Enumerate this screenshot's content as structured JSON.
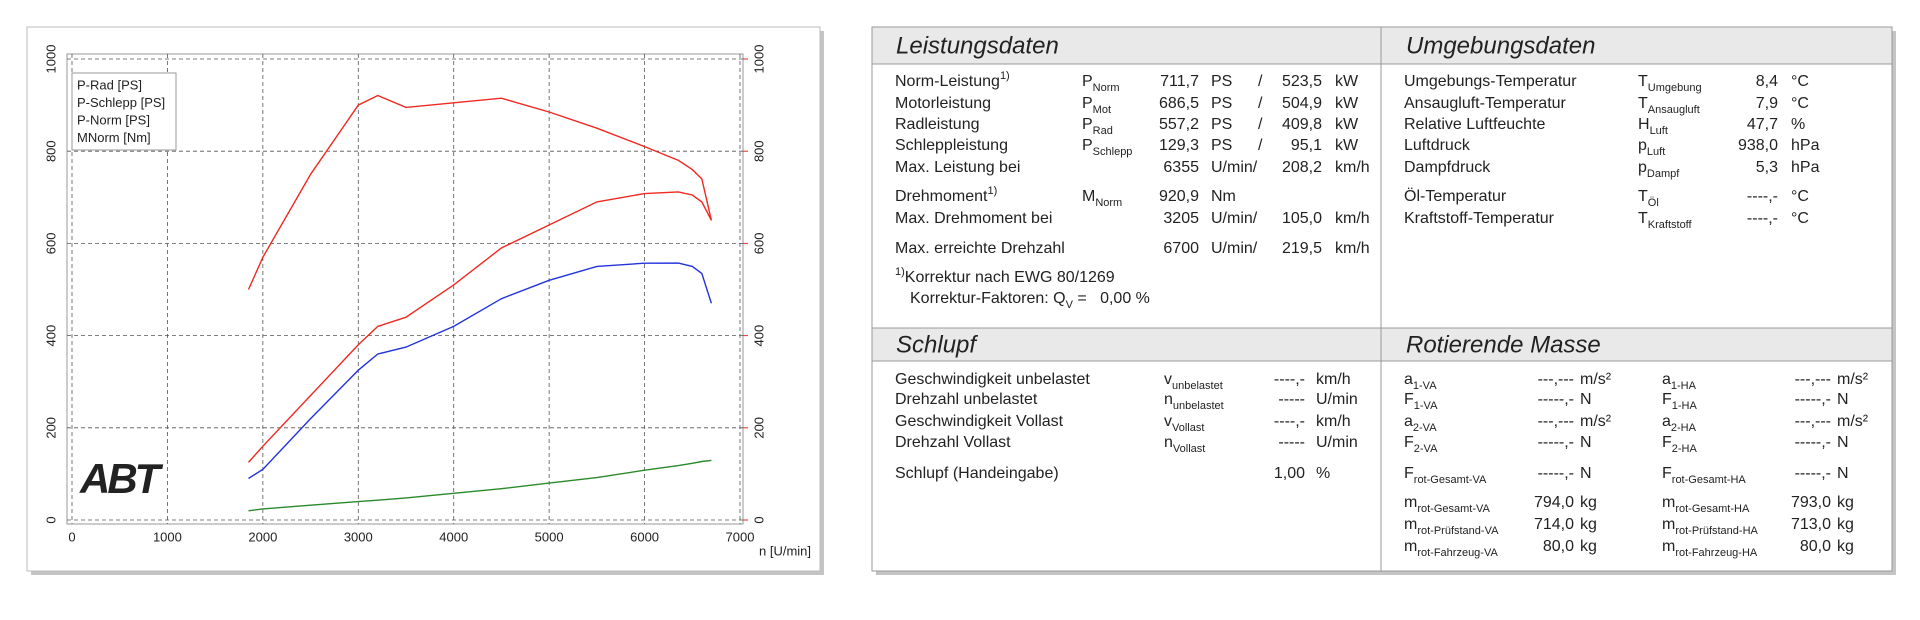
{
  "chart_data": {
    "type": "line",
    "x": [
      1850,
      2000,
      2500,
      3000,
      3205,
      3500,
      4000,
      4500,
      5000,
      5500,
      6000,
      6355,
      6500,
      6600,
      6700
    ],
    "series": [
      {
        "name": "P-Rad [PS]",
        "color": "#2233dd",
        "values": [
          90,
          110,
          220,
          325,
          360,
          375,
          420,
          480,
          520,
          550,
          557,
          557.2,
          550,
          535,
          470
        ]
      },
      {
        "name": "P-Schlepp [PS]",
        "color": "#2a8a2a",
        "values": [
          20,
          24,
          32,
          40,
          43,
          48,
          58,
          68,
          80,
          92,
          108,
          118,
          123,
          127,
          129.3
        ]
      },
      {
        "name": "P-Norm [PS]",
        "color": "#ee2a22",
        "values": [
          125,
          160,
          270,
          380,
          420,
          440,
          510,
          590,
          640,
          690,
          708,
          711.7,
          705,
          690,
          650
        ]
      },
      {
        "name": "MNorm [Nm]",
        "color": "#ee2a22",
        "axis": "y2",
        "values": [
          500,
          570,
          750,
          900,
          920.9,
          895,
          905,
          915,
          885,
          850,
          810,
          780,
          760,
          740,
          650
        ]
      }
    ],
    "xlabel": "n [U/min]",
    "xlim": [
      0,
      7000
    ],
    "xticks": [
      0,
      1000,
      2000,
      3000,
      4000,
      5000,
      6000,
      7000
    ],
    "ylim": [
      0,
      1000
    ],
    "yticks": [
      0,
      200,
      400,
      600,
      800,
      1000
    ],
    "y2lim": [
      0,
      1000
    ],
    "y2ticks": [
      0,
      200,
      400,
      600,
      800,
      1000
    ],
    "y2color": "#ee2a22",
    "grid": true,
    "legend": "upper left",
    "logo": "ABT"
  },
  "leistungsdaten": {
    "title": "Leistungsdaten",
    "rows": [
      {
        "label": "Norm-Leistung",
        "note": "1)",
        "symbol": "P",
        "sub": "Norm",
        "value1": "711,7",
        "unit1": "PS",
        "sep": "/",
        "value2": "523,5",
        "unit2": "kW",
        "color": "#ee2a22"
      },
      {
        "label": "Motorleistung",
        "symbol": "P",
        "sub": "Mot",
        "value1": "686,5",
        "unit1": "PS",
        "sep": "/",
        "value2": "504,9",
        "unit2": "kW",
        "color": "#ee2a22"
      },
      {
        "label": "Radleistung",
        "symbol": "P",
        "sub": "Rad",
        "value1": "557,2",
        "unit1": "PS",
        "sep": "/",
        "value2": "409,8",
        "unit2": "kW",
        "color": "#2233dd"
      },
      {
        "label": "Schleppleistung",
        "symbol": "P",
        "sub": "Schlepp",
        "value1": "129,3",
        "unit1": "PS",
        "sep": "/",
        "value2": "95,1",
        "unit2": "kW",
        "color": "#2a8a2a"
      },
      {
        "label": "Max. Leistung bei",
        "value1": "6355",
        "unit1": "U/min/",
        "value2": "208,2",
        "unit2": "km/h"
      },
      {
        "label": "Drehmoment",
        "note": "1)",
        "symbol": "M",
        "sub": "Norm",
        "value1": "920,9",
        "unit1": "Nm",
        "color": "#ee2a22"
      },
      {
        "label": "Max. Drehmoment bei",
        "value1": "3205",
        "unit1": "U/min/",
        "value2": "105,0",
        "unit2": "km/h"
      },
      {
        "label": "Max. erreichte Drehzahl",
        "value1": "6700",
        "unit1": "U/min/",
        "value2": "219,5",
        "unit2": "km/h"
      }
    ],
    "footnote": [
      {
        "note": "1)",
        "text": "Korrektur nach EWG 80/1269"
      },
      {
        "text": "Korrektur-Faktoren: Q",
        "sub": "V",
        "rest": " =   0,00 %"
      }
    ]
  },
  "umgebungsdaten": {
    "title": "Umgebungsdaten",
    "rows": [
      {
        "label": "Umgebungs-Temperatur",
        "symbol": "T",
        "sub": "Umgebung",
        "value": "8,4",
        "unit": "°C"
      },
      {
        "label": "Ansaugluft-Temperatur",
        "symbol": "T",
        "sub": "Ansaugluft",
        "value": "7,9",
        "unit": "°C"
      },
      {
        "label": "Relative Luftfeuchte",
        "symbol": "H",
        "sub": "Luft",
        "value": "47,7",
        "unit": "%"
      },
      {
        "label": "Luftdruck",
        "symbol": "p",
        "sub": "Luft",
        "value": "938,0",
        "unit": "hPa"
      },
      {
        "label": "Dampfdruck",
        "symbol": "p",
        "sub": "Dampf",
        "value": "5,3",
        "unit": "hPa"
      },
      {
        "label": "Öl-Temperatur",
        "symbol": "T",
        "sub": "Öl",
        "value": "----,-",
        "unit": "°C"
      },
      {
        "label": "Kraftstoff-Temperatur",
        "symbol": "T",
        "sub": "Kraftstoff",
        "value": "----,-",
        "unit": "°C"
      }
    ]
  },
  "schlupf": {
    "title": "Schlupf",
    "rows": [
      {
        "label": "Geschwindigkeit unbelastet",
        "symbol": "v",
        "sub": "unbelastet",
        "value": "----,-",
        "unit": "km/h"
      },
      {
        "label": "Drehzahl unbelastet",
        "symbol": "n",
        "sub": "unbelastet",
        "value": "-----",
        "unit": "U/min"
      },
      {
        "label": "Geschwindigkeit Vollast",
        "symbol": "v",
        "sub": "Vollast",
        "value": "----,-",
        "unit": "km/h"
      },
      {
        "label": "Drehzahl Vollast",
        "symbol": "n",
        "sub": "Vollast",
        "value": "-----",
        "unit": "U/min"
      },
      {
        "label": "Schlupf (Handeingabe)",
        "value": "1,00",
        "unit": "%"
      }
    ]
  },
  "rotierende_masse": {
    "title": "Rotierende Masse",
    "columns": [
      [
        {
          "symbol": "a",
          "sub": "1-VA",
          "value": "---,---",
          "unit": "m/s²"
        },
        {
          "symbol": "F",
          "sub": "1-VA",
          "value": "-----,-",
          "unit": "N"
        },
        {
          "symbol": "a",
          "sub": "2-VA",
          "value": "---,---",
          "unit": "m/s²"
        },
        {
          "symbol": "F",
          "sub": "2-VA",
          "value": "-----,-",
          "unit": "N"
        },
        {
          "symbol": "F",
          "sub": "rot-Gesamt-VA",
          "value": "-----,-",
          "unit": "N"
        },
        {
          "symbol": "m",
          "sub": "rot-Gesamt-VA",
          "value": "794,0",
          "unit": "kg"
        },
        {
          "symbol": "m",
          "sub": "rot-Prüfstand-VA",
          "value": "714,0",
          "unit": "kg"
        },
        {
          "symbol": "m",
          "sub": "rot-Fahrzeug-VA",
          "value": "80,0",
          "unit": "kg"
        }
      ],
      [
        {
          "symbol": "a",
          "sub": "1-HA",
          "value": "---,---",
          "unit": "m/s²"
        },
        {
          "symbol": "F",
          "sub": "1-HA",
          "value": "-----,-",
          "unit": "N"
        },
        {
          "symbol": "a",
          "sub": "2-HA",
          "value": "---,---",
          "unit": "m/s²"
        },
        {
          "symbol": "F",
          "sub": "2-HA",
          "value": "-----,-",
          "unit": "N"
        },
        {
          "symbol": "F",
          "sub": "rot-Gesamt-HA",
          "value": "-----,-",
          "unit": "N"
        },
        {
          "symbol": "m",
          "sub": "rot-Gesamt-HA",
          "value": "793,0",
          "unit": "kg"
        },
        {
          "symbol": "m",
          "sub": "rot-Prüfstand-HA",
          "value": "713,0",
          "unit": "kg"
        },
        {
          "symbol": "m",
          "sub": "rot-Fahrzeug-HA",
          "value": "80,0",
          "unit": "kg"
        }
      ]
    ]
  }
}
